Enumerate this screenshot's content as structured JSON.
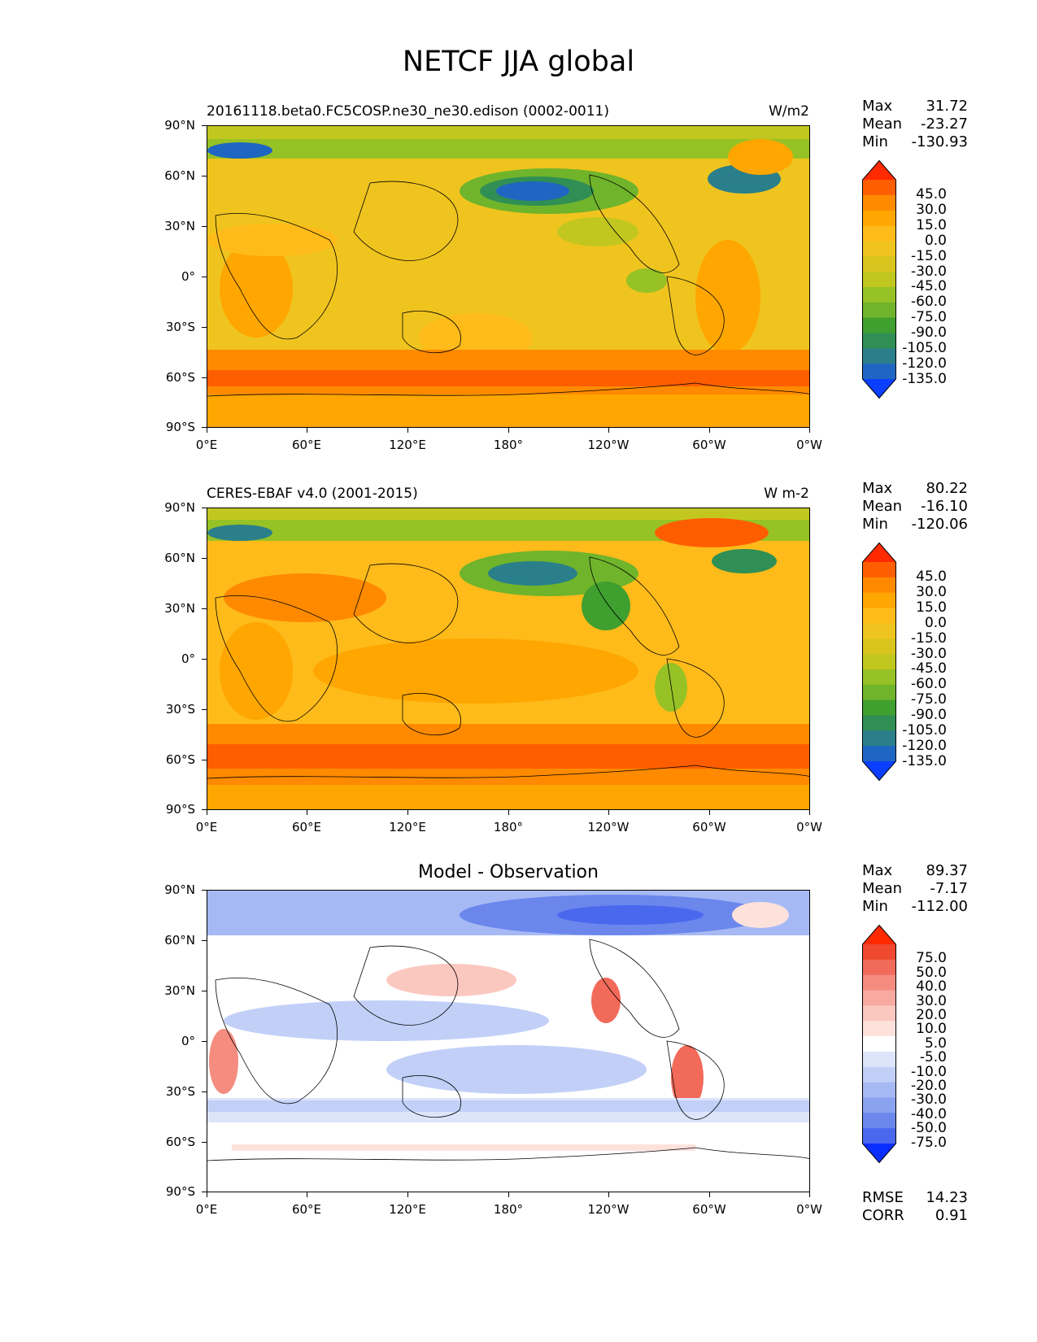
{
  "title": "NETCF JJA global",
  "axes": {
    "lat_labels": [
      "90°N",
      "60°N",
      "30°N",
      "0°",
      "30°S",
      "60°S",
      "90°S"
    ],
    "lon_labels": [
      "0°E",
      "60°E",
      "120°E",
      "180°",
      "120°W",
      "60°W",
      "0°W"
    ]
  },
  "panels": [
    {
      "left_title": "20161118.beta0.FC5COSP.ne30_ne30.edison (0002-0011)",
      "right_title": "W/m2",
      "center_title": "",
      "stats": {
        "max_label": "Max",
        "max": "31.72",
        "mean_label": "Mean",
        "mean": "-23.27",
        "min_label": "Min",
        "min": "-130.93"
      },
      "colorbar": {
        "levels": [
          "45.0",
          "30.0",
          "15.0",
          "0.0",
          "-15.0",
          "-30.0",
          "-45.0",
          "-60.0",
          "-75.0",
          "-90.0",
          "-105.0",
          "-120.0",
          "-135.0"
        ],
        "colors": [
          "#ff2a00",
          "#ff5e00",
          "#ff8a00",
          "#ffa600",
          "#ffbb1a",
          "#f0c41e",
          "#d9c41e",
          "#c2c71f",
          "#96c225",
          "#6fb42b",
          "#3f9f2f",
          "#2f8f54",
          "#2a7f8a",
          "#1f66c2",
          "#0a3fff"
        ]
      }
    },
    {
      "left_title": "CERES-EBAF v4.0 (2001-2015)",
      "right_title": "W m-2",
      "center_title": "",
      "stats": {
        "max_label": "Max",
        "max": "80.22",
        "mean_label": "Mean",
        "mean": "-16.10",
        "min_label": "Min",
        "min": "-120.06"
      },
      "colorbar": {
        "levels": [
          "45.0",
          "30.0",
          "15.0",
          "0.0",
          "-15.0",
          "-30.0",
          "-45.0",
          "-60.0",
          "-75.0",
          "-90.0",
          "-105.0",
          "-120.0",
          "-135.0"
        ],
        "colors": [
          "#ff2a00",
          "#ff5e00",
          "#ff8a00",
          "#ffa600",
          "#ffbb1a",
          "#f0c41e",
          "#d9c41e",
          "#c2c71f",
          "#96c225",
          "#6fb42b",
          "#3f9f2f",
          "#2f8f54",
          "#2a7f8a",
          "#1f66c2",
          "#0a3fff"
        ]
      }
    },
    {
      "left_title": "",
      "right_title": "",
      "center_title": "Model - Observation",
      "stats": {
        "max_label": "Max",
        "max": "89.37",
        "mean_label": "Mean",
        "mean": "-7.17",
        "min_label": "Min",
        "min": "-112.00"
      },
      "colorbar": {
        "levels": [
          "75.0",
          "50.0",
          "40.0",
          "30.0",
          "20.0",
          "10.0",
          "5.0",
          "-5.0",
          "-10.0",
          "-20.0",
          "-30.0",
          "-40.0",
          "-50.0",
          "-75.0"
        ],
        "colors": [
          "#ff2a00",
          "#f0492f",
          "#f26a5a",
          "#f58c80",
          "#f8aaa0",
          "#fbc8c0",
          "#fde2dc",
          "#ffffff",
          "#dde5fb",
          "#c2d0f8",
          "#a6b9f4",
          "#8aa2f0",
          "#6b87ec",
          "#4a68ee",
          "#0a2eff"
        ]
      },
      "rmse": {
        "rmse_label": "RMSE",
        "rmse": "14.23",
        "corr_label": "CORR",
        "corr": "0.91"
      }
    }
  ]
}
